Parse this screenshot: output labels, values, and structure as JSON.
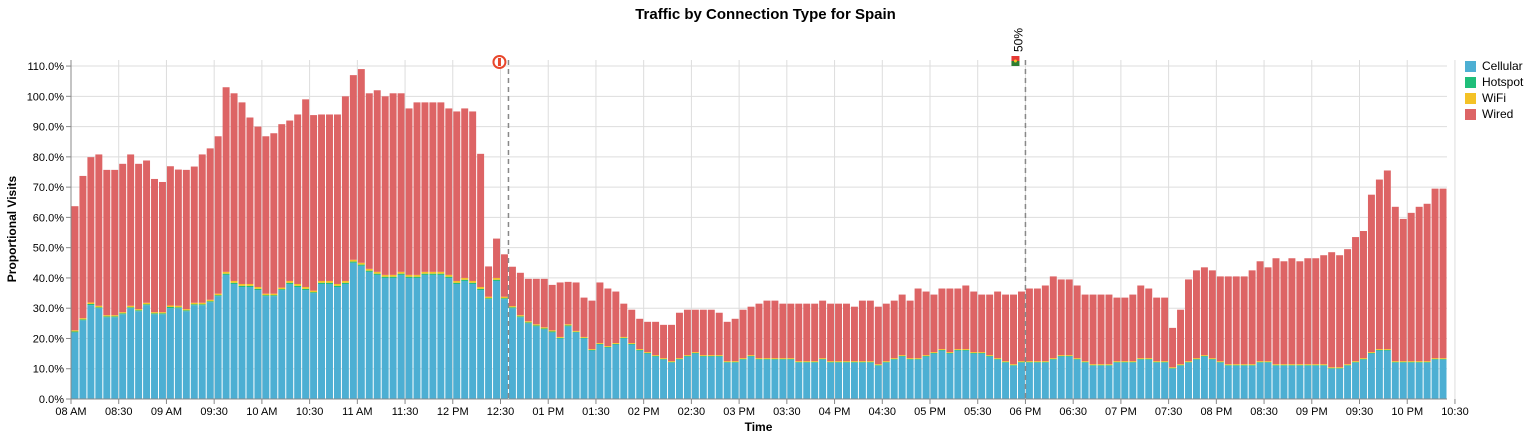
{
  "chart_data": {
    "type": "bar",
    "title": "Traffic by Connection Type for Spain",
    "xlabel": "Time",
    "ylabel": "Proportional Visits",
    "ylim": [
      0,
      1.12
    ],
    "y_ticks": [
      "0.0%",
      "10.0%",
      "20.0%",
      "30.0%",
      "40.0%",
      "50.0%",
      "60.0%",
      "70.0%",
      "80.0%",
      "90.0%",
      "100.0%",
      "110.0%"
    ],
    "x_ticks": [
      "08 AM",
      "08:30",
      "09 AM",
      "09:30",
      "10 AM",
      "10:30",
      "11 AM",
      "11:30",
      "12 PM",
      "12:30",
      "01 PM",
      "01:30",
      "02 PM",
      "02:30",
      "03 PM",
      "03:30",
      "04 PM",
      "04:30",
      "05 PM",
      "05:30",
      "06 PM",
      "06:30",
      "07 PM",
      "07:30",
      "08 PM",
      "08:30",
      "09 PM",
      "09:30",
      "10 PM",
      "10:30"
    ],
    "x_start": "08:00",
    "bin_minutes": 5,
    "grid": true,
    "legend_position": "right",
    "series": [
      {
        "name": "Cellular",
        "color": "#4dafd3",
        "values": [
          0.22,
          0.26,
          0.31,
          0.3,
          0.27,
          0.27,
          0.28,
          0.3,
          0.29,
          0.31,
          0.28,
          0.28,
          0.3,
          0.3,
          0.29,
          0.31,
          0.31,
          0.32,
          0.34,
          0.41,
          0.38,
          0.37,
          0.37,
          0.36,
          0.34,
          0.34,
          0.36,
          0.38,
          0.37,
          0.36,
          0.35,
          0.38,
          0.38,
          0.37,
          0.38,
          0.45,
          0.44,
          0.42,
          0.41,
          0.4,
          0.4,
          0.41,
          0.4,
          0.4,
          0.41,
          0.41,
          0.41,
          0.4,
          0.38,
          0.39,
          0.38,
          0.36,
          0.33,
          0.39,
          0.33,
          0.3,
          0.27,
          0.25,
          0.24,
          0.23,
          0.22,
          0.2,
          0.24,
          0.22,
          0.2,
          0.16,
          0.18,
          0.17,
          0.18,
          0.2,
          0.18,
          0.16,
          0.15,
          0.14,
          0.13,
          0.12,
          0.13,
          0.14,
          0.15,
          0.14,
          0.14,
          0.14,
          0.12,
          0.12,
          0.13,
          0.14,
          0.13,
          0.13,
          0.13,
          0.13,
          0.13,
          0.12,
          0.12,
          0.12,
          0.13,
          0.12,
          0.12,
          0.12,
          0.12,
          0.12,
          0.12,
          0.11,
          0.12,
          0.13,
          0.14,
          0.13,
          0.13,
          0.14,
          0.15,
          0.16,
          0.15,
          0.16,
          0.16,
          0.15,
          0.15,
          0.14,
          0.13,
          0.12,
          0.11,
          0.12,
          0.12,
          0.12,
          0.12,
          0.13,
          0.14,
          0.14,
          0.13,
          0.12,
          0.11,
          0.11,
          0.11,
          0.12,
          0.12,
          0.12,
          0.13,
          0.13,
          0.12,
          0.12,
          0.1,
          0.11,
          0.12,
          0.13,
          0.14,
          0.13,
          0.12,
          0.11,
          0.11,
          0.11,
          0.11,
          0.12,
          0.12,
          0.11,
          0.11,
          0.11,
          0.11,
          0.11,
          0.11,
          0.11,
          0.1,
          0.1,
          0.11,
          0.12,
          0.13,
          0.15,
          0.16,
          0.16,
          0.12,
          0.12,
          0.12,
          0.12,
          0.12,
          0.13,
          0.13
        ]
      },
      {
        "name": "Hotspot",
        "color": "#1fbe7a",
        "values": [
          0.003,
          0.003,
          0.004,
          0.003,
          0.003,
          0.003,
          0.003,
          0.003,
          0.003,
          0.003,
          0.003,
          0.003,
          0.004,
          0.003,
          0.003,
          0.003,
          0.003,
          0.003,
          0.003,
          0.004,
          0.004,
          0.004,
          0.004,
          0.004,
          0.003,
          0.003,
          0.003,
          0.004,
          0.004,
          0.004,
          0.003,
          0.004,
          0.004,
          0.004,
          0.004,
          0.004,
          0.004,
          0.004,
          0.004,
          0.004,
          0.004,
          0.004,
          0.004,
          0.004,
          0.004,
          0.004,
          0.004,
          0.004,
          0.004,
          0.004,
          0.004,
          0.004,
          0.003,
          0.004,
          0.003,
          0.003,
          0.003,
          0.003,
          0.003,
          0.003,
          0.003,
          0.002,
          0.003,
          0.002,
          0.002,
          0.002,
          0.002,
          0.002,
          0.002,
          0.002,
          0.002,
          0.002,
          0.002,
          0.002,
          0.002,
          0.002,
          0.002,
          0.002,
          0.002,
          0.002,
          0.002,
          0.002,
          0.002,
          0.002,
          0.002,
          0.002,
          0.002,
          0.002,
          0.002,
          0.002,
          0.002,
          0.002,
          0.002,
          0.002,
          0.002,
          0.002,
          0.002,
          0.002,
          0.002,
          0.002,
          0.002,
          0.002,
          0.002,
          0.002,
          0.002,
          0.002,
          0.002,
          0.002,
          0.002,
          0.002,
          0.002,
          0.002,
          0.002,
          0.002,
          0.002,
          0.002,
          0.002,
          0.002,
          0.002,
          0.002,
          0.002,
          0.002,
          0.002,
          0.002,
          0.002,
          0.002,
          0.002,
          0.002,
          0.002,
          0.002,
          0.002,
          0.002,
          0.002,
          0.002,
          0.002,
          0.002,
          0.002,
          0.002,
          0.002,
          0.002,
          0.002,
          0.002,
          0.002,
          0.002,
          0.002,
          0.002,
          0.002,
          0.002,
          0.002,
          0.002,
          0.002,
          0.002,
          0.002,
          0.002,
          0.002,
          0.002,
          0.002,
          0.002,
          0.002,
          0.002,
          0.002,
          0.002,
          0.002,
          0.002,
          0.002,
          0.002,
          0.002,
          0.002,
          0.002,
          0.002,
          0.002,
          0.002,
          0.002
        ]
      },
      {
        "name": "WiFi",
        "color": "#f4c226",
        "values": [
          0.004,
          0.004,
          0.005,
          0.005,
          0.004,
          0.004,
          0.004,
          0.005,
          0.004,
          0.005,
          0.004,
          0.004,
          0.005,
          0.005,
          0.004,
          0.005,
          0.005,
          0.005,
          0.005,
          0.006,
          0.006,
          0.006,
          0.006,
          0.006,
          0.005,
          0.005,
          0.005,
          0.006,
          0.006,
          0.006,
          0.005,
          0.006,
          0.006,
          0.006,
          0.006,
          0.006,
          0.006,
          0.006,
          0.006,
          0.006,
          0.006,
          0.006,
          0.006,
          0.006,
          0.006,
          0.006,
          0.006,
          0.006,
          0.006,
          0.006,
          0.006,
          0.006,
          0.005,
          0.006,
          0.005,
          0.004,
          0.004,
          0.004,
          0.004,
          0.004,
          0.004,
          0.003,
          0.004,
          0.003,
          0.003,
          0.003,
          0.003,
          0.003,
          0.003,
          0.003,
          0.003,
          0.003,
          0.003,
          0.003,
          0.003,
          0.003,
          0.003,
          0.003,
          0.003,
          0.003,
          0.003,
          0.003,
          0.003,
          0.003,
          0.003,
          0.003,
          0.003,
          0.003,
          0.003,
          0.003,
          0.003,
          0.003,
          0.003,
          0.003,
          0.003,
          0.003,
          0.003,
          0.003,
          0.003,
          0.003,
          0.003,
          0.003,
          0.003,
          0.003,
          0.003,
          0.003,
          0.003,
          0.003,
          0.003,
          0.003,
          0.003,
          0.003,
          0.003,
          0.003,
          0.003,
          0.003,
          0.003,
          0.003,
          0.003,
          0.003,
          0.003,
          0.003,
          0.003,
          0.003,
          0.003,
          0.003,
          0.003,
          0.003,
          0.003,
          0.003,
          0.003,
          0.003,
          0.003,
          0.003,
          0.003,
          0.003,
          0.003,
          0.003,
          0.003,
          0.003,
          0.003,
          0.003,
          0.003,
          0.003,
          0.003,
          0.003,
          0.003,
          0.003,
          0.003,
          0.003,
          0.003,
          0.003,
          0.003,
          0.003,
          0.003,
          0.003,
          0.003,
          0.003,
          0.003,
          0.003,
          0.003,
          0.003,
          0.003,
          0.003,
          0.003,
          0.003,
          0.003,
          0.003,
          0.003,
          0.003,
          0.003,
          0.003,
          0.003,
          0.003,
          0.003
        ]
      },
      {
        "name": "Wired",
        "color": "#dd6465",
        "values": [
          0.41,
          0.47,
          0.48,
          0.5,
          0.48,
          0.48,
          0.49,
          0.5,
          0.48,
          0.47,
          0.44,
          0.43,
          0.46,
          0.45,
          0.46,
          0.45,
          0.49,
          0.5,
          0.52,
          0.61,
          0.62,
          0.6,
          0.55,
          0.53,
          0.52,
          0.53,
          0.54,
          0.53,
          0.56,
          0.62,
          0.58,
          0.55,
          0.55,
          0.56,
          0.61,
          0.61,
          0.64,
          0.58,
          0.6,
          0.59,
          0.6,
          0.59,
          0.55,
          0.57,
          0.56,
          0.56,
          0.56,
          0.55,
          0.56,
          0.56,
          0.56,
          0.44,
          0.1,
          0.13,
          0.14,
          0.13,
          0.14,
          0.14,
          0.15,
          0.16,
          0.15,
          0.18,
          0.14,
          0.16,
          0.13,
          0.16,
          0.2,
          0.19,
          0.17,
          0.11,
          0.11,
          0.1,
          0.1,
          0.11,
          0.11,
          0.12,
          0.15,
          0.15,
          0.14,
          0.15,
          0.15,
          0.14,
          0.13,
          0.14,
          0.16,
          0.16,
          0.18,
          0.19,
          0.19,
          0.18,
          0.18,
          0.19,
          0.19,
          0.19,
          0.19,
          0.19,
          0.19,
          0.19,
          0.18,
          0.2,
          0.2,
          0.19,
          0.19,
          0.19,
          0.2,
          0.19,
          0.23,
          0.21,
          0.19,
          0.2,
          0.21,
          0.2,
          0.21,
          0.2,
          0.19,
          0.2,
          0.22,
          0.22,
          0.23,
          0.23,
          0.24,
          0.24,
          0.25,
          0.27,
          0.25,
          0.25,
          0.24,
          0.22,
          0.23,
          0.23,
          0.23,
          0.21,
          0.21,
          0.22,
          0.24,
          0.23,
          0.21,
          0.21,
          0.13,
          0.18,
          0.27,
          0.29,
          0.29,
          0.29,
          0.28,
          0.29,
          0.29,
          0.29,
          0.31,
          0.33,
          0.31,
          0.35,
          0.34,
          0.35,
          0.34,
          0.35,
          0.35,
          0.36,
          0.38,
          0.37,
          0.38,
          0.41,
          0.42,
          0.52,
          0.56,
          0.59,
          0.51,
          0.47,
          0.49,
          0.51,
          0.52,
          0.56,
          0.56
        ]
      }
    ],
    "markers": [
      {
        "time": "12:35",
        "type": "incident",
        "label": ""
      },
      {
        "time": "18:00",
        "type": "rollout",
        "label": "50%"
      }
    ]
  }
}
